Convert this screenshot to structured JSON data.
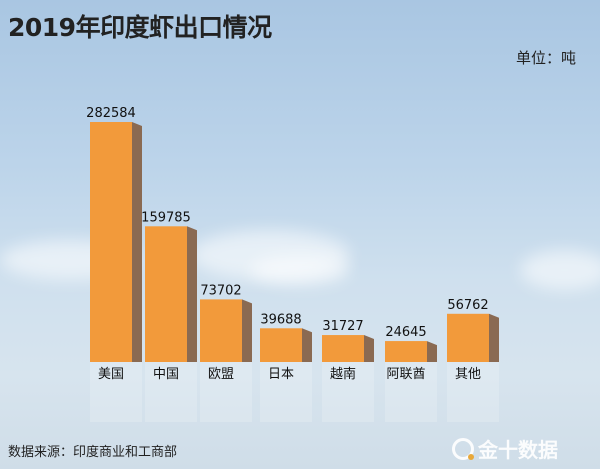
{
  "chart_data": {
    "type": "bar",
    "title": "2019年印度虾出口情况",
    "unit_label": "单位：吨",
    "categories": [
      "美国",
      "中国",
      "欧盟",
      "日本",
      "越南",
      "阿联酋",
      "其他"
    ],
    "values": [
      282584,
      159785,
      73702,
      39688,
      31727,
      24645,
      56762
    ],
    "ylim": [
      0,
      300000
    ],
    "grid": false,
    "bar_color": "#f29a3b",
    "bar_side_color": "#8a6a52"
  },
  "footer": {
    "source": "数据来源：印度商业和工商部",
    "logo_text": "金十数据"
  }
}
